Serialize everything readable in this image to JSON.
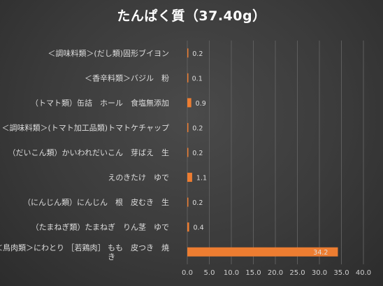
{
  "chart_data": {
    "type": "bar",
    "orientation": "horizontal",
    "title": "たんぱく質（37.40g）",
    "categories": [
      "＜調味料類＞(だし類)固形ブイヨン",
      "＜香辛料類＞バジル　粉",
      "（トマト類）缶詰　ホール　食塩無添加",
      "＜調味料類＞(トマト加工品類)トマトケチャップ",
      "（だいこん類）かいわれだいこん　芽ばえ　生",
      "えのきたけ　ゆで",
      "（にんじん類）にんじん　根　皮むき　生",
      "（たまねぎ類）たまねぎ　りん茎　ゆで",
      "＜鳥肉類＞にわとり ［若鶏肉］ もも　皮つき　焼き"
    ],
    "values": [
      0.2,
      0.1,
      0.9,
      0.2,
      0.2,
      1.1,
      0.2,
      0.4,
      34.2
    ],
    "data_labels": [
      "0.2",
      "0.1",
      "0.9",
      "0.2",
      "0.2",
      "1.1",
      "0.2",
      "0.4",
      "34.2"
    ],
    "xlim": [
      0,
      40
    ],
    "xticks": [
      "0.0",
      "5.0",
      "10.0",
      "15.0",
      "20.0",
      "25.0",
      "30.0",
      "35.0",
      "40.0"
    ],
    "xlabel": "",
    "ylabel": "",
    "grid": true,
    "legend": "none",
    "colors": {
      "bar": "#ED7D31",
      "grid": "#5e5e5e",
      "text": "#dedede"
    }
  }
}
